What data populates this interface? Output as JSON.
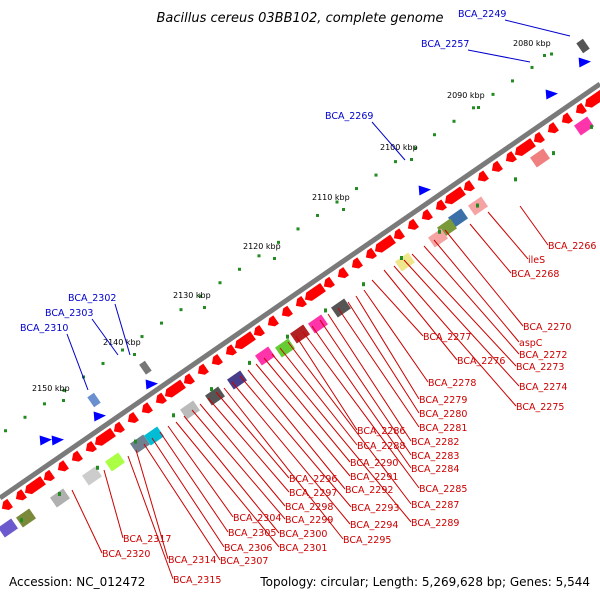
{
  "title": "Bacillus cereus 03BB102, complete genome",
  "footer": {
    "accession": "Accession: NC_012472",
    "summary": "Topology: circular; Length: 5,269,628 bp; Genes: 5,544"
  },
  "colors": {
    "backbone": "#808080",
    "forward_label": "#0000cc",
    "reverse_label": "#cc0000",
    "forward_feature": "#0000ff",
    "reverse_feature": "#ff0000",
    "tick": "#228b22"
  },
  "ticks": [
    "2080 kbp",
    "2090 kbp",
    "2100 kbp",
    "2110 kbp",
    "2120 kbp",
    "2130 kbp",
    "2140 kbp",
    "2150 kbp"
  ],
  "forward_labels": [
    "BCA_2249",
    "BCA_2257",
    "BCA_2269",
    "BCA_2302",
    "BCA_2303",
    "BCA_2310"
  ],
  "reverse_labels": [
    "BCA_2266",
    "ileS",
    "BCA_2268",
    "BCA_2270",
    "aspC",
    "BCA_2272",
    "BCA_2273",
    "BCA_2274",
    "BCA_2275",
    "BCA_2276",
    "BCA_2277",
    "BCA_2278",
    "BCA_2279",
    "BCA_2280",
    "BCA_2281",
    "BCA_2282",
    "BCA_2283",
    "BCA_2284",
    "BCA_2285",
    "BCA_2286",
    "BCA_2287",
    "BCA_2288",
    "BCA_2289",
    "BCA_2290",
    "BCA_2291",
    "BCA_2292",
    "BCA_2293",
    "BCA_2294",
    "BCA_2295",
    "BCA_2296",
    "BCA_2297",
    "BCA_2298",
    "BCA_2299",
    "BCA_2300",
    "BCA_2301",
    "BCA_2304",
    "BCA_2305",
    "BCA_2306",
    "BCA_2307",
    "BCA_2314",
    "BCA_2315",
    "BCA_2317",
    "BCA_2320"
  ]
}
